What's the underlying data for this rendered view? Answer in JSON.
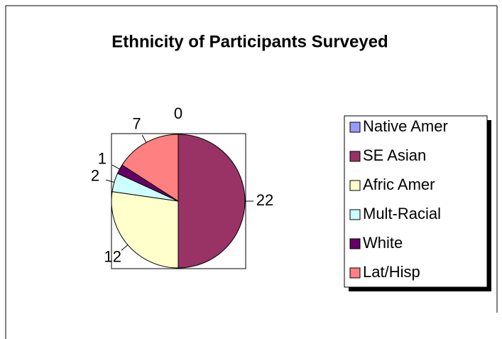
{
  "chart_data": {
    "type": "pie",
    "title": "Ethnicity of Participants Surveyed",
    "categories": [
      "Native Amer",
      "SE Asian",
      "Afric Amer",
      "Mult-Racial",
      "White",
      "Lat/Hisp"
    ],
    "values": [
      0,
      22,
      12,
      2,
      1,
      7
    ],
    "colors": [
      "#9999ff",
      "#993366",
      "#ffffcc",
      "#ccffff",
      "#660066",
      "#ff8080"
    ],
    "legend": "right"
  }
}
